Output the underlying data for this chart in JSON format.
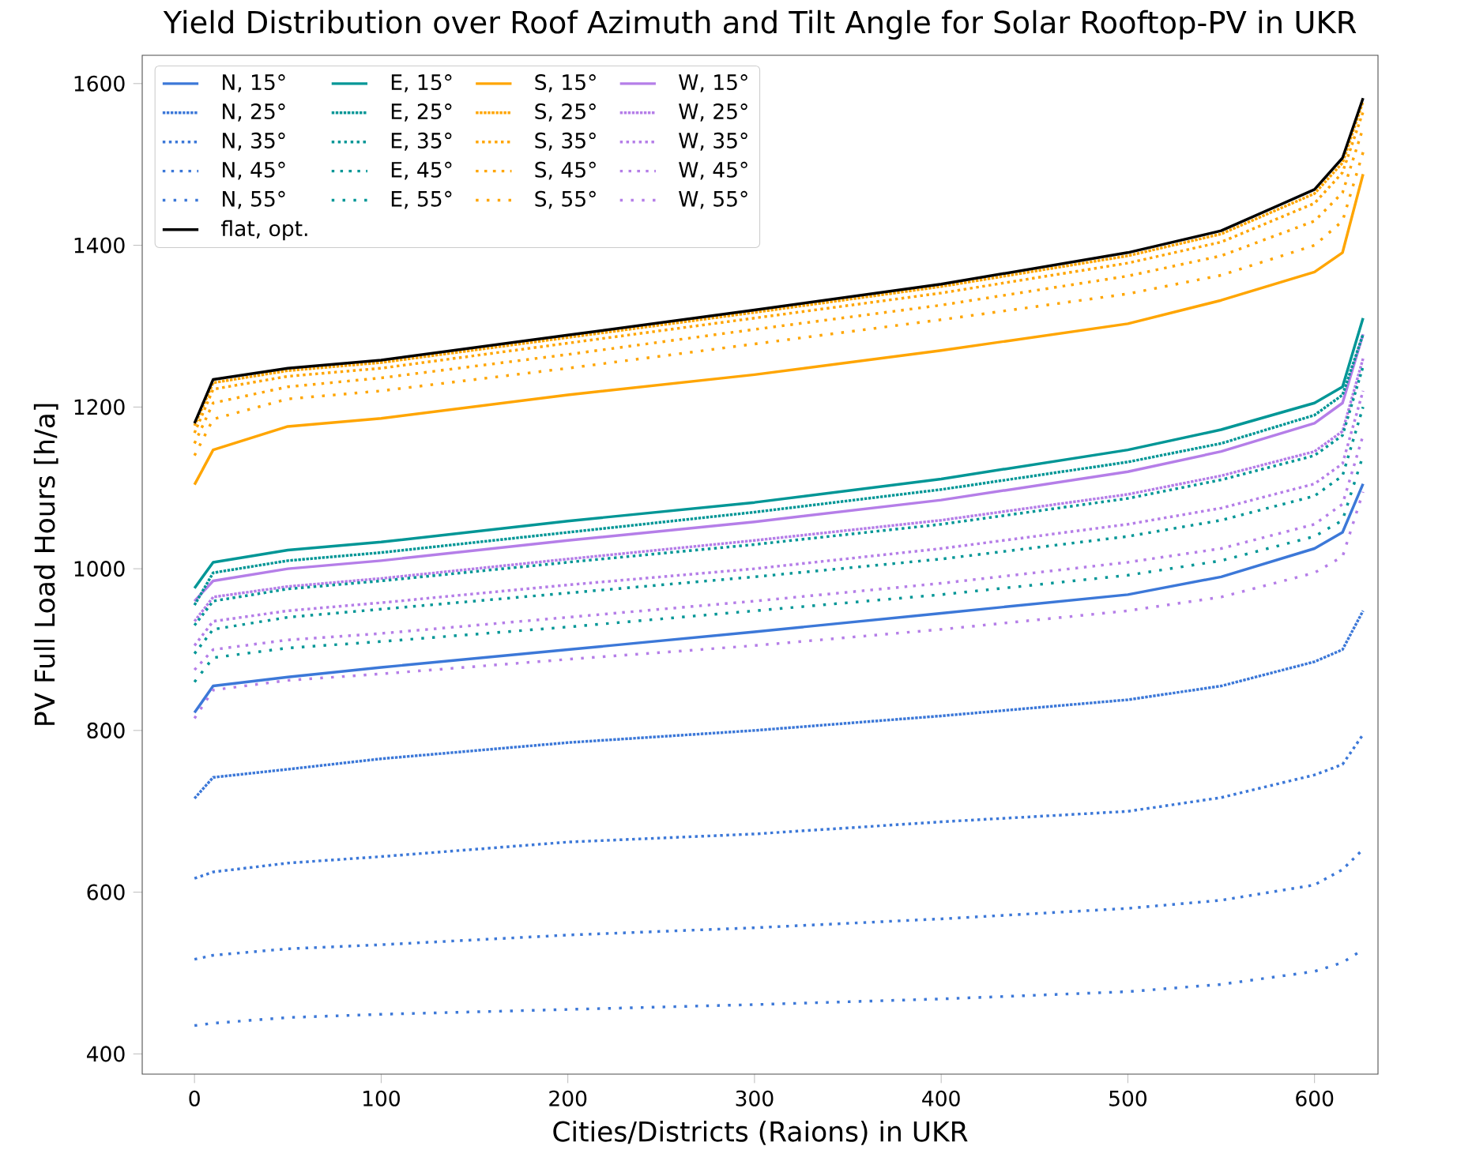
{
  "chart_data": {
    "type": "line",
    "title": "Yield Distribution over Roof Azimuth and Tilt Angle for Solar Rooftop-PV in UKR",
    "xlabel": "Cities/Districts (Raions) in UKR",
    "ylabel": "PV Full Load Hours [h/a]",
    "x": [
      0,
      10,
      50,
      100,
      200,
      300,
      400,
      500,
      550,
      600,
      615,
      626
    ],
    "xlim": [
      -28,
      634
    ],
    "xticks": [
      0,
      100,
      200,
      300,
      400,
      500,
      600
    ],
    "ylim": [
      375,
      1635
    ],
    "yticks": [
      400,
      600,
      800,
      1000,
      1200,
      1400,
      1600
    ],
    "legend": "top left",
    "series": [
      {
        "name": "N, 15°",
        "color": "#3c78d8",
        "line_style": "solid",
        "values": [
          822,
          855,
          866,
          878,
          900,
          922,
          945,
          968,
          990,
          1025,
          1045,
          1105
        ]
      },
      {
        "name": "N, 25°",
        "color": "#3c78d8",
        "line_style": "dotted",
        "values": [
          716,
          742,
          752,
          765,
          785,
          800,
          818,
          838,
          855,
          885,
          900,
          948
        ]
      },
      {
        "name": "N, 35°",
        "color": "#3c78d8",
        "line_style": "dotted",
        "values": [
          617,
          625,
          636,
          644,
          662,
          672,
          687,
          700,
          717,
          745,
          758,
          795
        ]
      },
      {
        "name": "N, 45°",
        "color": "#3c78d8",
        "line_style": "dotted",
        "values": [
          517,
          522,
          530,
          535,
          547,
          556,
          567,
          580,
          590,
          609,
          628,
          653
        ]
      },
      {
        "name": "N, 55°",
        "color": "#3c78d8",
        "line_style": "dotted",
        "values": [
          435,
          438,
          445,
          449,
          455,
          461,
          468,
          477,
          486,
          502,
          513,
          529
        ]
      },
      {
        "name": "flat, opt.",
        "color": "#000000",
        "line_style": "solid",
        "values": [
          1180,
          1234,
          1248,
          1258,
          1289,
          1320,
          1352,
          1391,
          1418,
          1469,
          1508,
          1582
        ]
      },
      {
        "name": "E, 15°",
        "color": "#009696",
        "line_style": "solid",
        "values": [
          976,
          1008,
          1023,
          1033,
          1059,
          1082,
          1111,
          1147,
          1172,
          1205,
          1225,
          1310
        ]
      },
      {
        "name": "E, 25°",
        "color": "#009696",
        "line_style": "dotted",
        "values": [
          955,
          995,
          1010,
          1020,
          1045,
          1070,
          1098,
          1132,
          1155,
          1190,
          1215,
          1290
        ]
      },
      {
        "name": "E, 35°",
        "color": "#009696",
        "line_style": "dotted",
        "values": [
          930,
          960,
          975,
          985,
          1008,
          1030,
          1055,
          1087,
          1110,
          1140,
          1165,
          1250
        ]
      },
      {
        "name": "E, 45°",
        "color": "#009696",
        "line_style": "dotted",
        "values": [
          895,
          925,
          940,
          950,
          970,
          990,
          1012,
          1040,
          1060,
          1090,
          1115,
          1200
        ]
      },
      {
        "name": "E, 55°",
        "color": "#009696",
        "line_style": "dotted",
        "values": [
          860,
          890,
          902,
          910,
          928,
          948,
          968,
          992,
          1010,
          1040,
          1060,
          1140
        ]
      },
      {
        "name": "S, 15°",
        "color": "#ffa500",
        "line_style": "solid",
        "values": [
          1104,
          1147,
          1176,
          1186,
          1215,
          1240,
          1270,
          1303,
          1332,
          1367,
          1391,
          1488
        ]
      },
      {
        "name": "S, 25°",
        "color": "#ffa500",
        "line_style": "dotted",
        "values": [
          1177,
          1230,
          1245,
          1255,
          1286,
          1317,
          1349,
          1387,
          1414,
          1464,
          1502,
          1578
        ]
      },
      {
        "name": "S, 35°",
        "color": "#ffa500",
        "line_style": "dotted",
        "values": [
          1168,
          1222,
          1238,
          1248,
          1279,
          1310,
          1341,
          1378,
          1404,
          1452,
          1490,
          1565
        ]
      },
      {
        "name": "S, 45°",
        "color": "#ffa500",
        "line_style": "dotted",
        "values": [
          1155,
          1205,
          1225,
          1236,
          1265,
          1296,
          1326,
          1362,
          1387,
          1430,
          1465,
          1545
        ]
      },
      {
        "name": "S, 55°",
        "color": "#ffa500",
        "line_style": "dotted",
        "values": [
          1140,
          1185,
          1210,
          1220,
          1248,
          1278,
          1308,
          1340,
          1363,
          1400,
          1430,
          1515
        ]
      },
      {
        "name": "W, 15°",
        "color": "#b57ee8",
        "line_style": "solid",
        "values": [
          960,
          985,
          1000,
          1010,
          1035,
          1058,
          1085,
          1120,
          1145,
          1180,
          1205,
          1290
        ]
      },
      {
        "name": "W, 25°",
        "color": "#b57ee8",
        "line_style": "dotted",
        "values": [
          935,
          965,
          978,
          988,
          1012,
          1035,
          1060,
          1092,
          1115,
          1145,
          1170,
          1260
        ]
      },
      {
        "name": "W, 35°",
        "color": "#b57ee8",
        "line_style": "dotted",
        "values": [
          905,
          935,
          948,
          958,
          980,
          1000,
          1025,
          1055,
          1075,
          1105,
          1130,
          1220
        ]
      },
      {
        "name": "W, 45°",
        "color": "#b57ee8",
        "line_style": "dotted",
        "values": [
          875,
          900,
          912,
          920,
          940,
          960,
          982,
          1008,
          1025,
          1055,
          1080,
          1165
        ]
      },
      {
        "name": "W, 55°",
        "color": "#b57ee8",
        "line_style": "dotted",
        "values": [
          815,
          850,
          862,
          870,
          888,
          905,
          925,
          948,
          965,
          995,
          1015,
          1095
        ]
      }
    ]
  }
}
